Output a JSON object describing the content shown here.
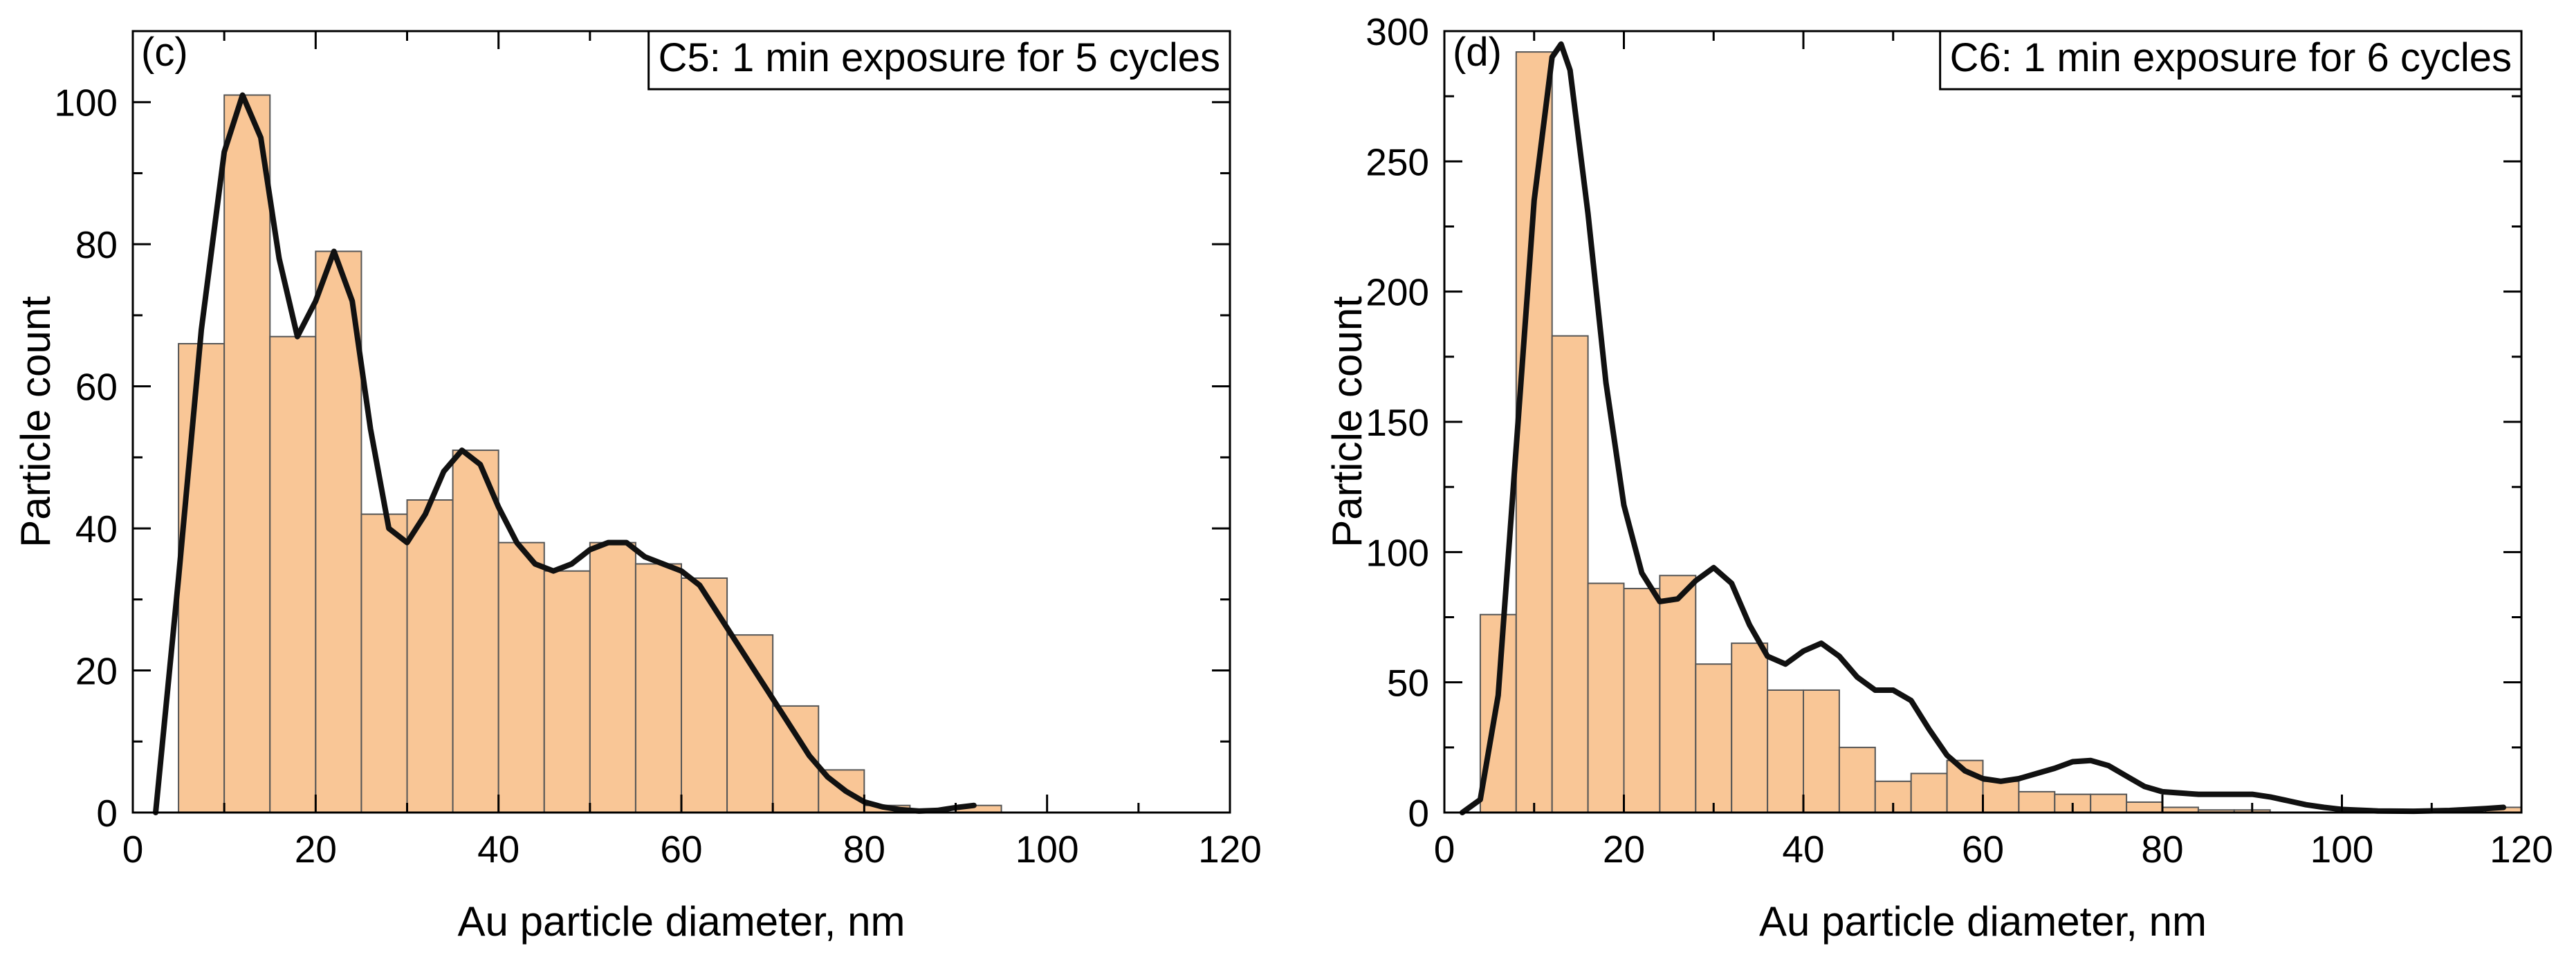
{
  "colors": {
    "bar_fill": "#f9c696",
    "bar_stroke": "#555555",
    "curve": "#111111",
    "axis": "#000000",
    "background": "#ffffff"
  },
  "chart_data": [
    {
      "type": "bar",
      "panel_label": "(c)",
      "title": "C5: 1 min exposure for 5 cycles",
      "xlabel": "Au particle diameter, nm",
      "ylabel": "Particle count",
      "xlim": [
        0,
        120
      ],
      "ylim": [
        0,
        110
      ],
      "xticks": [
        0,
        20,
        40,
        60,
        80,
        100,
        120
      ],
      "yticks": [
        0,
        20,
        40,
        60,
        80,
        100
      ],
      "bin_width": 5,
      "bins": [
        {
          "x0": 5,
          "x1": 10,
          "count": 66
        },
        {
          "x0": 10,
          "x1": 15,
          "count": 101
        },
        {
          "x0": 15,
          "x1": 20,
          "count": 67
        },
        {
          "x0": 20,
          "x1": 25,
          "count": 79
        },
        {
          "x0": 25,
          "x1": 30,
          "count": 42
        },
        {
          "x0": 30,
          "x1": 35,
          "count": 44
        },
        {
          "x0": 35,
          "x1": 40,
          "count": 51
        },
        {
          "x0": 40,
          "x1": 45,
          "count": 38
        },
        {
          "x0": 45,
          "x1": 50,
          "count": 34
        },
        {
          "x0": 50,
          "x1": 55,
          "count": 38
        },
        {
          "x0": 55,
          "x1": 60,
          "count": 35
        },
        {
          "x0": 60,
          "x1": 65,
          "count": 33
        },
        {
          "x0": 65,
          "x1": 70,
          "count": 25
        },
        {
          "x0": 70,
          "x1": 75,
          "count": 15
        },
        {
          "x0": 75,
          "x1": 80,
          "count": 6
        },
        {
          "x0": 80,
          "x1": 85,
          "count": 1
        },
        {
          "x0": 85,
          "x1": 90,
          "count": 0
        },
        {
          "x0": 90,
          "x1": 95,
          "count": 1
        }
      ],
      "fit_curve": [
        [
          2.5,
          0
        ],
        [
          5,
          33
        ],
        [
          7.5,
          68
        ],
        [
          10,
          93
        ],
        [
          12,
          101
        ],
        [
          14,
          95
        ],
        [
          16,
          78
        ],
        [
          18,
          67
        ],
        [
          20,
          72
        ],
        [
          22,
          79
        ],
        [
          24,
          72
        ],
        [
          26,
          54
        ],
        [
          28,
          40
        ],
        [
          30,
          38
        ],
        [
          32,
          42
        ],
        [
          34,
          48
        ],
        [
          36,
          51
        ],
        [
          38,
          49
        ],
        [
          40,
          43
        ],
        [
          42,
          38
        ],
        [
          44,
          35
        ],
        [
          46,
          34
        ],
        [
          48,
          35
        ],
        [
          50,
          37
        ],
        [
          52,
          38
        ],
        [
          54,
          38
        ],
        [
          56,
          36
        ],
        [
          58,
          35
        ],
        [
          60,
          34
        ],
        [
          62,
          32
        ],
        [
          64,
          28
        ],
        [
          66,
          24
        ],
        [
          68,
          20
        ],
        [
          70,
          16
        ],
        [
          72,
          12
        ],
        [
          74,
          8
        ],
        [
          76,
          5
        ],
        [
          78,
          3
        ],
        [
          80,
          1.5
        ],
        [
          82,
          0.8
        ],
        [
          84,
          0.4
        ],
        [
          86,
          0.2
        ],
        [
          88,
          0.3
        ],
        [
          90,
          0.7
        ],
        [
          92,
          1
        ]
      ]
    },
    {
      "type": "bar",
      "panel_label": "(d)",
      "title": "C6: 1 min exposure for 6 cycles",
      "xlabel": "Au particle diameter, nm",
      "ylabel": "Particle count",
      "xlim": [
        0,
        120
      ],
      "ylim": [
        0,
        300
      ],
      "xticks": [
        0,
        20,
        40,
        60,
        80,
        100,
        120
      ],
      "yticks": [
        0,
        50,
        100,
        150,
        200,
        250,
        300
      ],
      "bin_width": 4,
      "bins": [
        {
          "x0": 4,
          "x1": 8,
          "count": 76
        },
        {
          "x0": 8,
          "x1": 12,
          "count": 292
        },
        {
          "x0": 12,
          "x1": 16,
          "count": 183
        },
        {
          "x0": 16,
          "x1": 20,
          "count": 88
        },
        {
          "x0": 20,
          "x1": 24,
          "count": 86
        },
        {
          "x0": 24,
          "x1": 28,
          "count": 91
        },
        {
          "x0": 28,
          "x1": 32,
          "count": 57
        },
        {
          "x0": 32,
          "x1": 36,
          "count": 65
        },
        {
          "x0": 36,
          "x1": 40,
          "count": 47
        },
        {
          "x0": 40,
          "x1": 44,
          "count": 47
        },
        {
          "x0": 44,
          "x1": 48,
          "count": 25
        },
        {
          "x0": 48,
          "x1": 52,
          "count": 12
        },
        {
          "x0": 52,
          "x1": 56,
          "count": 15
        },
        {
          "x0": 56,
          "x1": 60,
          "count": 20
        },
        {
          "x0": 60,
          "x1": 64,
          "count": 12
        },
        {
          "x0": 64,
          "x1": 68,
          "count": 8
        },
        {
          "x0": 68,
          "x1": 72,
          "count": 7
        },
        {
          "x0": 72,
          "x1": 76,
          "count": 7
        },
        {
          "x0": 76,
          "x1": 80,
          "count": 4
        },
        {
          "x0": 80,
          "x1": 84,
          "count": 2
        },
        {
          "x0": 84,
          "x1": 88,
          "count": 1
        },
        {
          "x0": 88,
          "x1": 92,
          "count": 1
        },
        {
          "x0": 92,
          "x1": 96,
          "count": 0
        },
        {
          "x0": 96,
          "x1": 100,
          "count": 0
        },
        {
          "x0": 100,
          "x1": 104,
          "count": 0
        },
        {
          "x0": 104,
          "x1": 108,
          "count": 0
        },
        {
          "x0": 108,
          "x1": 112,
          "count": 0
        },
        {
          "x0": 112,
          "x1": 116,
          "count": 0
        },
        {
          "x0": 116,
          "x1": 120,
          "count": 2
        }
      ],
      "fit_curve": [
        [
          2,
          0
        ],
        [
          4,
          5
        ],
        [
          6,
          45
        ],
        [
          8,
          140
        ],
        [
          10,
          235
        ],
        [
          12,
          290
        ],
        [
          13,
          295
        ],
        [
          14,
          285
        ],
        [
          16,
          230
        ],
        [
          18,
          165
        ],
        [
          20,
          118
        ],
        [
          22,
          92
        ],
        [
          24,
          81
        ],
        [
          26,
          82
        ],
        [
          28,
          89
        ],
        [
          30,
          94
        ],
        [
          32,
          88
        ],
        [
          34,
          72
        ],
        [
          36,
          60
        ],
        [
          38,
          57
        ],
        [
          40,
          62
        ],
        [
          42,
          65
        ],
        [
          44,
          60
        ],
        [
          46,
          52
        ],
        [
          48,
          47
        ],
        [
          50,
          47
        ],
        [
          52,
          43
        ],
        [
          54,
          32
        ],
        [
          56,
          22
        ],
        [
          58,
          16
        ],
        [
          60,
          13
        ],
        [
          62,
          12
        ],
        [
          64,
          13
        ],
        [
          66,
          15
        ],
        [
          68,
          17
        ],
        [
          70,
          19.5
        ],
        [
          72,
          20
        ],
        [
          74,
          18
        ],
        [
          76,
          14
        ],
        [
          78,
          10
        ],
        [
          80,
          8
        ],
        [
          82,
          7.5
        ],
        [
          84,
          7
        ],
        [
          86,
          7
        ],
        [
          88,
          7
        ],
        [
          90,
          7
        ],
        [
          92,
          6
        ],
        [
          94,
          4.5
        ],
        [
          96,
          3
        ],
        [
          98,
          2
        ],
        [
          100,
          1.2
        ],
        [
          104,
          0.6
        ],
        [
          108,
          0.5
        ],
        [
          112,
          0.8
        ],
        [
          116,
          1.5
        ],
        [
          118,
          2
        ]
      ]
    }
  ]
}
